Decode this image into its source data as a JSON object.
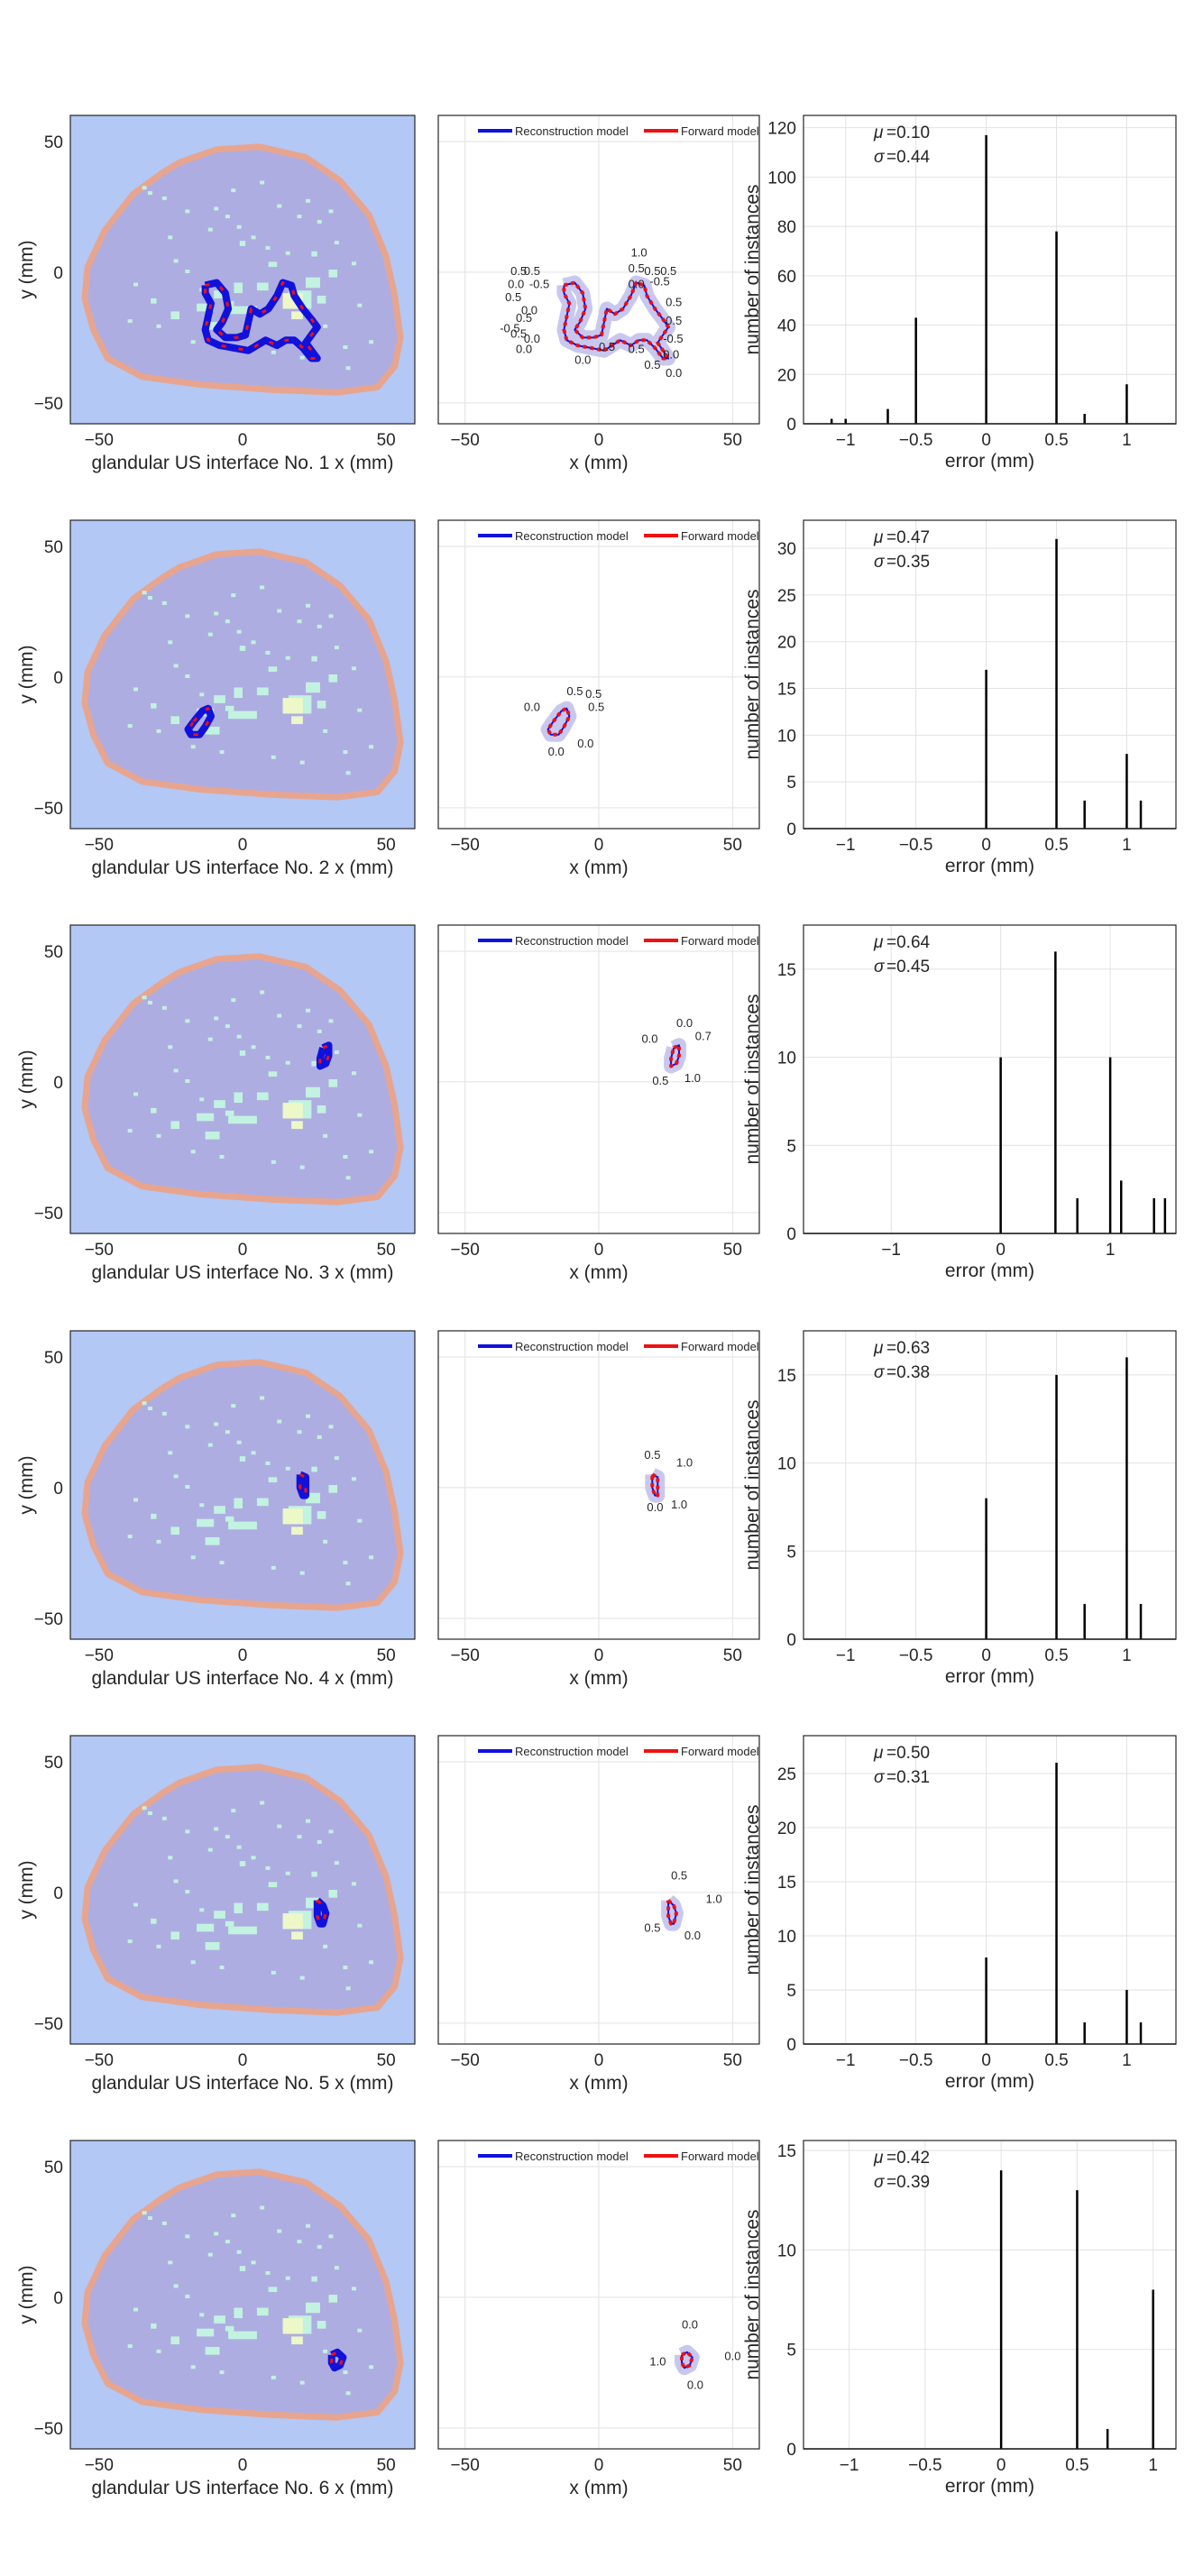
{
  "colors": {
    "background_blue": "#b3c8f5",
    "skin_ring": "#e7a58f",
    "tissue_purple": "#aeade2",
    "glandular_cyan": "#c2f2e0",
    "glandular_yellow": "#eef7c8",
    "reconstruction": "#1111dd",
    "forward": "#ee1111",
    "histogram_bar": "#000000"
  },
  "legend": {
    "reconstruction": "Reconstruction model",
    "forward": "Forward model"
  },
  "common": {
    "map_ylabel": "y (mm)",
    "contour_xlabel": "x (mm)",
    "hist_xlabel": "error (mm)",
    "hist_ylabel": "number of instances",
    "map_ticks": [
      -50,
      0,
      50
    ],
    "mu_label": "μ",
    "sigma_label": "σ"
  },
  "chart_data": [
    {
      "type": "bar",
      "panel": "interface 1 histogram",
      "stats": {
        "mu": "=0.10",
        "sigma": "=0.44"
      },
      "xlim": [
        -1.3,
        1.35
      ],
      "ylim": [
        0,
        125
      ],
      "xticks": [
        -1,
        -0.5,
        0,
        0.5,
        1
      ],
      "yticks": [
        0,
        20,
        40,
        60,
        80,
        100,
        120
      ],
      "bars": [
        [
          -1.1,
          2
        ],
        [
          -1.0,
          2
        ],
        [
          -0.7,
          6
        ],
        [
          -0.5,
          43
        ],
        [
          0,
          117
        ],
        [
          0.5,
          78
        ],
        [
          0.7,
          4
        ],
        [
          1.0,
          16
        ]
      ]
    },
    {
      "type": "bar",
      "panel": "interface 2 histogram",
      "stats": {
        "mu": "=0.47",
        "sigma": "=0.35"
      },
      "xlim": [
        -1.3,
        1.35
      ],
      "ylim": [
        0,
        33
      ],
      "xticks": [
        -1,
        -0.5,
        0,
        0.5,
        1
      ],
      "yticks": [
        0,
        5,
        10,
        15,
        20,
        25,
        30
      ],
      "bars": [
        [
          0,
          17
        ],
        [
          0.5,
          31
        ],
        [
          0.7,
          3
        ],
        [
          1.0,
          8
        ],
        [
          1.1,
          3
        ]
      ]
    },
    {
      "type": "bar",
      "panel": "interface 3 histogram",
      "stats": {
        "mu": "=0.64",
        "sigma": "=0.45"
      },
      "xlim": [
        -1.8,
        1.6
      ],
      "ylim": [
        0,
        17.5
      ],
      "xticks": [
        -1,
        0,
        1
      ],
      "yticks": [
        0,
        5,
        10,
        15
      ],
      "bars": [
        [
          0,
          10
        ],
        [
          0.5,
          16
        ],
        [
          0.7,
          2
        ],
        [
          1.0,
          10
        ],
        [
          1.1,
          3
        ],
        [
          1.4,
          2
        ],
        [
          1.5,
          2
        ]
      ]
    },
    {
      "type": "bar",
      "panel": "interface 4 histogram",
      "stats": {
        "mu": "=0.63",
        "sigma": "=0.38"
      },
      "xlim": [
        -1.3,
        1.35
      ],
      "ylim": [
        0,
        17.5
      ],
      "xticks": [
        -1,
        -0.5,
        0,
        0.5,
        1
      ],
      "yticks": [
        0,
        5,
        10,
        15
      ],
      "bars": [
        [
          0,
          8
        ],
        [
          0.5,
          15
        ],
        [
          0.7,
          2
        ],
        [
          1.0,
          16
        ],
        [
          1.1,
          2
        ]
      ]
    },
    {
      "type": "bar",
      "panel": "interface 5 histogram",
      "stats": {
        "mu": "=0.50",
        "sigma": "=0.31"
      },
      "xlim": [
        -1.3,
        1.35
      ],
      "ylim": [
        0,
        28.5
      ],
      "xticks": [
        -1,
        -0.5,
        0,
        0.5,
        1
      ],
      "yticks": [
        0,
        5,
        10,
        15,
        20,
        25
      ],
      "bars": [
        [
          0,
          8
        ],
        [
          0.5,
          26
        ],
        [
          0.7,
          2
        ],
        [
          1.0,
          5
        ],
        [
          1.1,
          2
        ]
      ]
    },
    {
      "type": "bar",
      "panel": "interface 6 histogram",
      "stats": {
        "mu": "=0.42",
        "sigma": "=0.39"
      },
      "xlim": [
        -1.3,
        1.15
      ],
      "ylim": [
        0,
        15.5
      ],
      "xticks": [
        -1,
        -0.5,
        0,
        0.5,
        1
      ],
      "yticks": [
        0,
        5,
        10,
        15
      ],
      "bars": [
        [
          0,
          14
        ],
        [
          0.5,
          13
        ],
        [
          0.7,
          1
        ],
        [
          1.0,
          8
        ]
      ]
    }
  ],
  "rows": [
    {
      "map_xlabel": "glandular US interface No. 1 x (mm)",
      "map_contour": [
        [
          -13,
          -5
        ],
        [
          -9,
          -4
        ],
        [
          -6,
          -8
        ],
        [
          -5,
          -14
        ],
        [
          -7,
          -19
        ],
        [
          -9,
          -22
        ],
        [
          -6,
          -25
        ],
        [
          -2,
          -25
        ],
        [
          1,
          -24
        ],
        [
          2,
          -19
        ],
        [
          3,
          -14
        ],
        [
          6,
          -16
        ],
        [
          9,
          -14
        ],
        [
          12,
          -9
        ],
        [
          14,
          -4
        ],
        [
          17,
          -5
        ],
        [
          18,
          -9
        ],
        [
          21,
          -14
        ],
        [
          24,
          -18
        ],
        [
          26,
          -21
        ],
        [
          24,
          -24
        ],
        [
          22,
          -27
        ],
        [
          24,
          -30
        ],
        [
          26,
          -33
        ],
        [
          24,
          -33
        ],
        [
          21,
          -29
        ],
        [
          18,
          -26
        ],
        [
          15,
          -26
        ],
        [
          12,
          -28
        ],
        [
          8,
          -26
        ],
        [
          5,
          -28
        ],
        [
          2,
          -30
        ],
        [
          -3,
          -29
        ],
        [
          -8,
          -28
        ],
        [
          -12,
          -26
        ],
        [
          -13,
          -22
        ],
        [
          -12,
          -17
        ],
        [
          -11,
          -12
        ],
        [
          -13,
          -8
        ],
        [
          -13,
          -5
        ]
      ],
      "annotations": [
        {
          "t": "0.5",
          "x": -33,
          "y": -1
        },
        {
          "t": "0.5",
          "x": -28,
          "y": -1
        },
        {
          "t": "0.0",
          "x": -34,
          "y": -6
        },
        {
          "t": "-0.5",
          "x": -26,
          "y": -6
        },
        {
          "t": "0.5",
          "x": -35,
          "y": -11
        },
        {
          "t": "0.0",
          "x": -29,
          "y": -16
        },
        {
          "t": "-0.5",
          "x": -37,
          "y": -23
        },
        {
          "t": "0.5",
          "x": -31,
          "y": -19
        },
        {
          "t": "0.5",
          "x": -33,
          "y": -25
        },
        {
          "t": "0.0",
          "x": -28,
          "y": -27
        },
        {
          "t": "0.0",
          "x": -31,
          "y": -31
        },
        {
          "t": "0.0",
          "x": -9,
          "y": -35
        },
        {
          "t": "0.5",
          "x": 0,
          "y": -30
        },
        {
          "t": "1.0",
          "x": 12,
          "y": 6
        },
        {
          "t": "0.5",
          "x": 11,
          "y": 0
        },
        {
          "t": "0.5",
          "x": 17,
          "y": -1
        },
        {
          "t": "0.5",
          "x": 23,
          "y": -1
        },
        {
          "t": "0.0",
          "x": 11,
          "y": -6
        },
        {
          "t": "-0.5",
          "x": 19,
          "y": -5
        },
        {
          "t": "0.5",
          "x": 25,
          "y": -13
        },
        {
          "t": "0.5",
          "x": 25,
          "y": -20
        },
        {
          "t": "-0.5",
          "x": 24,
          "y": -27
        },
        {
          "t": "0.0",
          "x": 24,
          "y": -33
        },
        {
          "t": "0.5",
          "x": 11,
          "y": -31
        },
        {
          "t": "0.5",
          "x": 17,
          "y": -37
        },
        {
          "t": "0.0",
          "x": 25,
          "y": -40
        }
      ]
    },
    {
      "map_xlabel": "glandular US interface No. 2 x (mm)",
      "map_contour": [
        [
          -17,
          -17
        ],
        [
          -14,
          -13
        ],
        [
          -12,
          -12
        ],
        [
          -11,
          -15
        ],
        [
          -13,
          -19
        ],
        [
          -15,
          -22
        ],
        [
          -18,
          -22
        ],
        [
          -19,
          -20
        ],
        [
          -17,
          -17
        ]
      ],
      "annotations": [
        {
          "t": "0.0",
          "x": -28,
          "y": -13
        },
        {
          "t": "0.5",
          "x": -12,
          "y": -7
        },
        {
          "t": "0.5",
          "x": -5,
          "y": -8
        },
        {
          "t": "0.5",
          "x": -4,
          "y": -13
        },
        {
          "t": "0.0",
          "x": -19,
          "y": -30
        },
        {
          "t": "0.0",
          "x": -8,
          "y": -27
        }
      ]
    },
    {
      "map_xlabel": "glandular US interface No. 3 x (mm)",
      "map_contour": [
        [
          28,
          13
        ],
        [
          30,
          14
        ],
        [
          30,
          10
        ],
        [
          29,
          7
        ],
        [
          27,
          6
        ],
        [
          27,
          9
        ],
        [
          28,
          13
        ]
      ],
      "annotations": [
        {
          "t": "0.0",
          "x": 29,
          "y": 21
        },
        {
          "t": "0.0",
          "x": 16,
          "y": 15
        },
        {
          "t": "0.7",
          "x": 36,
          "y": 16
        },
        {
          "t": "0.5",
          "x": 20,
          "y": -1
        },
        {
          "t": "1.0",
          "x": 32,
          "y": 0
        }
      ]
    },
    {
      "map_xlabel": "glandular US interface No. 4 x (mm)",
      "map_contour": [
        [
          20,
          5
        ],
        [
          22,
          4
        ],
        [
          22,
          0
        ],
        [
          22,
          -3
        ],
        [
          21,
          -3
        ],
        [
          20,
          0
        ],
        [
          20,
          5
        ]
      ],
      "annotations": [
        {
          "t": "0.5",
          "x": 17,
          "y": 11
        },
        {
          "t": "1.0",
          "x": 29,
          "y": 8
        },
        {
          "t": "0.0",
          "x": 18,
          "y": -9
        },
        {
          "t": "1.0",
          "x": 27,
          "y": -8
        }
      ]
    },
    {
      "map_xlabel": "glandular US interface No. 5 x (mm)",
      "map_contour": [
        [
          26,
          -3
        ],
        [
          28,
          -5
        ],
        [
          29,
          -8
        ],
        [
          28,
          -12
        ],
        [
          27,
          -12
        ],
        [
          26,
          -9
        ],
        [
          26,
          -3
        ]
      ],
      "annotations": [
        {
          "t": "0.5",
          "x": 27,
          "y": 5
        },
        {
          "t": "1.0",
          "x": 40,
          "y": -4
        },
        {
          "t": "0.5",
          "x": 17,
          "y": -15
        },
        {
          "t": "0.0",
          "x": 32,
          "y": -18
        }
      ]
    },
    {
      "map_xlabel": "glandular US interface No. 6 x (mm)",
      "map_contour": [
        [
          31,
          -22
        ],
        [
          33,
          -21
        ],
        [
          35,
          -23
        ],
        [
          34,
          -26
        ],
        [
          32,
          -27
        ],
        [
          31,
          -25
        ],
        [
          31,
          -22
        ]
      ],
      "annotations": [
        {
          "t": "0.0",
          "x": 31,
          "y": -12
        },
        {
          "t": "1.0",
          "x": 19,
          "y": -26
        },
        {
          "t": "0.0",
          "x": 47,
          "y": -24
        },
        {
          "t": "0.0",
          "x": 33,
          "y": -35
        }
      ]
    }
  ]
}
